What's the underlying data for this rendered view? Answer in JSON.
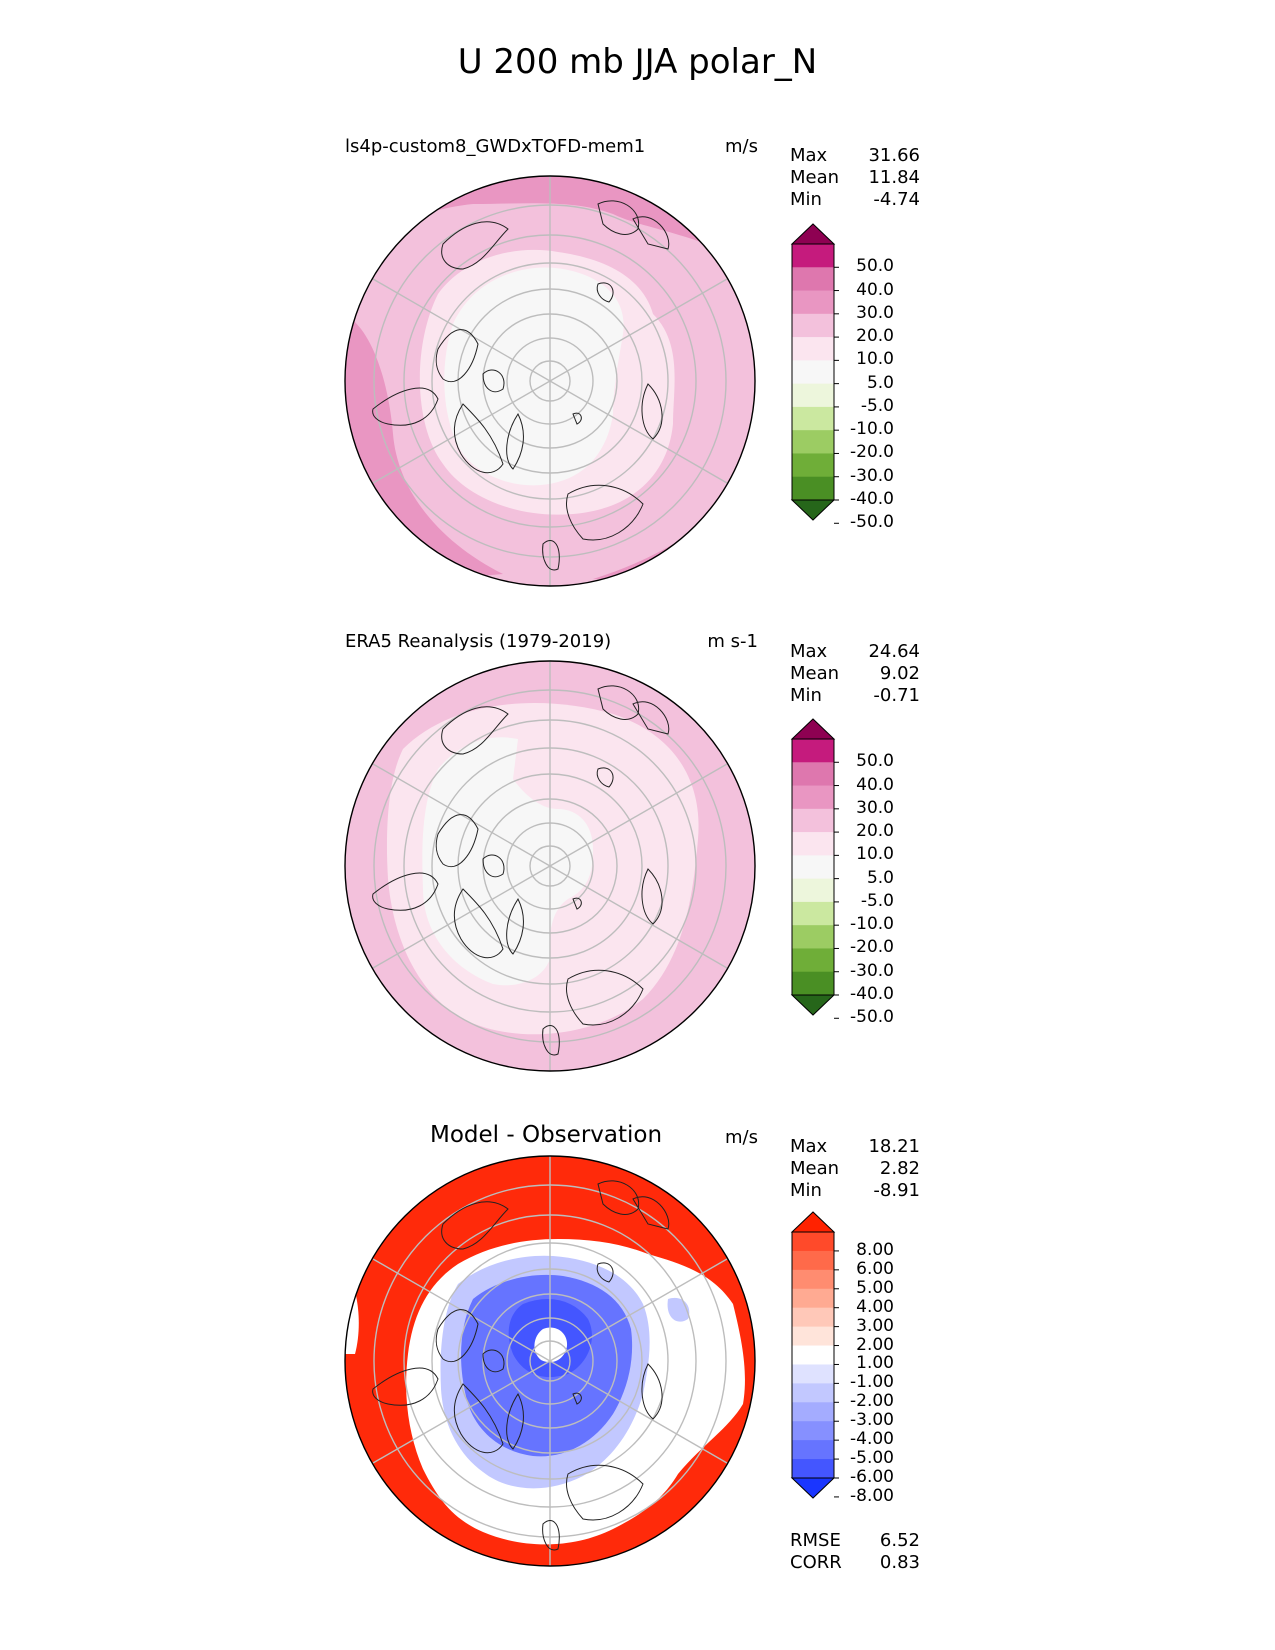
{
  "title": "U 200 mb JJA polar_N",
  "panels": [
    {
      "name": "test",
      "label": "ls4p-custom8_GWDxTOFD-mem1",
      "units": "m/s",
      "stats": [
        {
          "key": "Max",
          "value": "31.66"
        },
        {
          "key": "Mean",
          "value": "11.84"
        },
        {
          "key": "Min",
          "value": "-4.74"
        }
      ],
      "colorbar": {
        "ticks": [
          "50.0",
          "40.0",
          "30.0",
          "20.0",
          "10.0",
          "5.0",
          "-5.0",
          "-10.0",
          "-20.0",
          "-30.0",
          "-40.0",
          "-50.0"
        ],
        "colors": [
          "#8e0152",
          "#c51b7d",
          "#de77ae",
          "#e996c2",
          "#f3c1dc",
          "#fbe5ef",
          "#f7f7f7",
          "#edf6dc",
          "#cbe8a0",
          "#9ccc63",
          "#6fae38",
          "#4a8f24",
          "#26661a"
        ]
      }
    },
    {
      "name": "reference",
      "label": "ERA5 Reanalysis (1979-2019)",
      "units": "m s-1",
      "stats": [
        {
          "key": "Max",
          "value": "24.64"
        },
        {
          "key": "Mean",
          "value": "9.02"
        },
        {
          "key": "Min",
          "value": "-0.71"
        }
      ],
      "colorbar": {
        "ticks": [
          "50.0",
          "40.0",
          "30.0",
          "20.0",
          "10.0",
          "5.0",
          "-5.0",
          "-10.0",
          "-20.0",
          "-30.0",
          "-40.0",
          "-50.0"
        ],
        "colors": [
          "#8e0152",
          "#c51b7d",
          "#de77ae",
          "#e996c2",
          "#f3c1dc",
          "#fbe5ef",
          "#f7f7f7",
          "#edf6dc",
          "#cbe8a0",
          "#9ccc63",
          "#6fae38",
          "#4a8f24",
          "#26661a"
        ]
      }
    },
    {
      "name": "difference",
      "label": "Model - Observation",
      "units": "m/s",
      "stats": [
        {
          "key": "Max",
          "value": "18.21"
        },
        {
          "key": "Mean",
          "value": "2.82"
        },
        {
          "key": "Min",
          "value": "-8.91"
        }
      ],
      "colorbar": {
        "ticks": [
          "8.00",
          "6.00",
          "5.00",
          "4.00",
          "3.00",
          "2.00",
          "1.00",
          "-1.00",
          "-2.00",
          "-3.00",
          "-4.00",
          "-5.00",
          "-6.00",
          "-8.00"
        ],
        "colors": [
          "#ff2200",
          "#ff4a2a",
          "#ff6a4a",
          "#ff8c70",
          "#ffaa92",
          "#ffc8b8",
          "#ffe4da",
          "#ffffff",
          "#dfe2ff",
          "#c2c8ff",
          "#a4acff",
          "#8690ff",
          "#6674ff",
          "#4456ff",
          "#1a36ff"
        ]
      },
      "metrics": [
        {
          "key": "RMSE",
          "value": "6.52"
        },
        {
          "key": "CORR",
          "value": "0.83"
        }
      ]
    }
  ]
}
